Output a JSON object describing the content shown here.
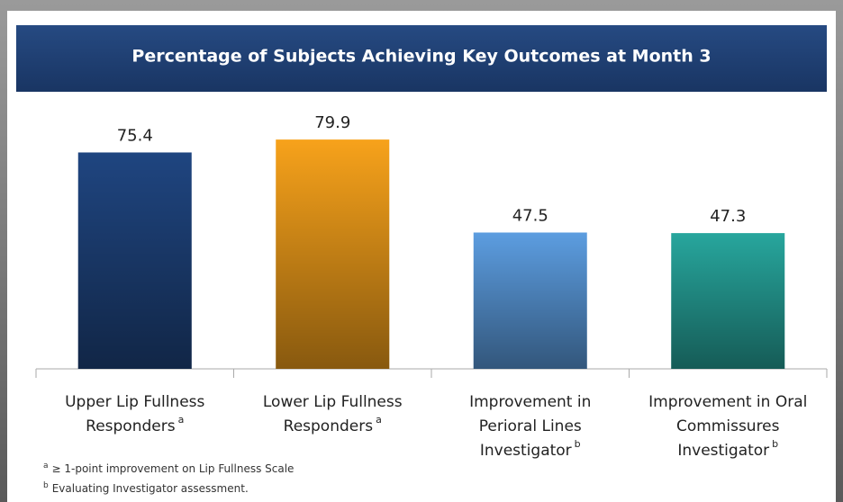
{
  "chart_data": {
    "type": "bar",
    "title": "Percentage of Subjects Achieving Key Outcomes at Month 3",
    "categories": [
      [
        "Upper Lip Fullness",
        "Responders"
      ],
      [
        "Lower Lip Fullness",
        "Responders"
      ],
      [
        "Improvement in",
        "Perioral Lines",
        "Investigator"
      ],
      [
        "Improvement in Oral",
        "Commissures",
        "Investigator"
      ]
    ],
    "category_notes": [
      "a",
      "a",
      "b",
      "b"
    ],
    "values": [
      75.4,
      79.9,
      47.5,
      47.3
    ],
    "colors": [
      "#1f4580",
      "#f7a21b",
      "#5c9de0",
      "#27a69d"
    ],
    "ylim": [
      0,
      100
    ],
    "footnotes": [
      {
        "marker": "a",
        "text": "≥ 1-point improvement on Lip Fullness Scale"
      },
      {
        "marker": "b",
        "text": "Evaluating Investigator assessment."
      }
    ]
  }
}
